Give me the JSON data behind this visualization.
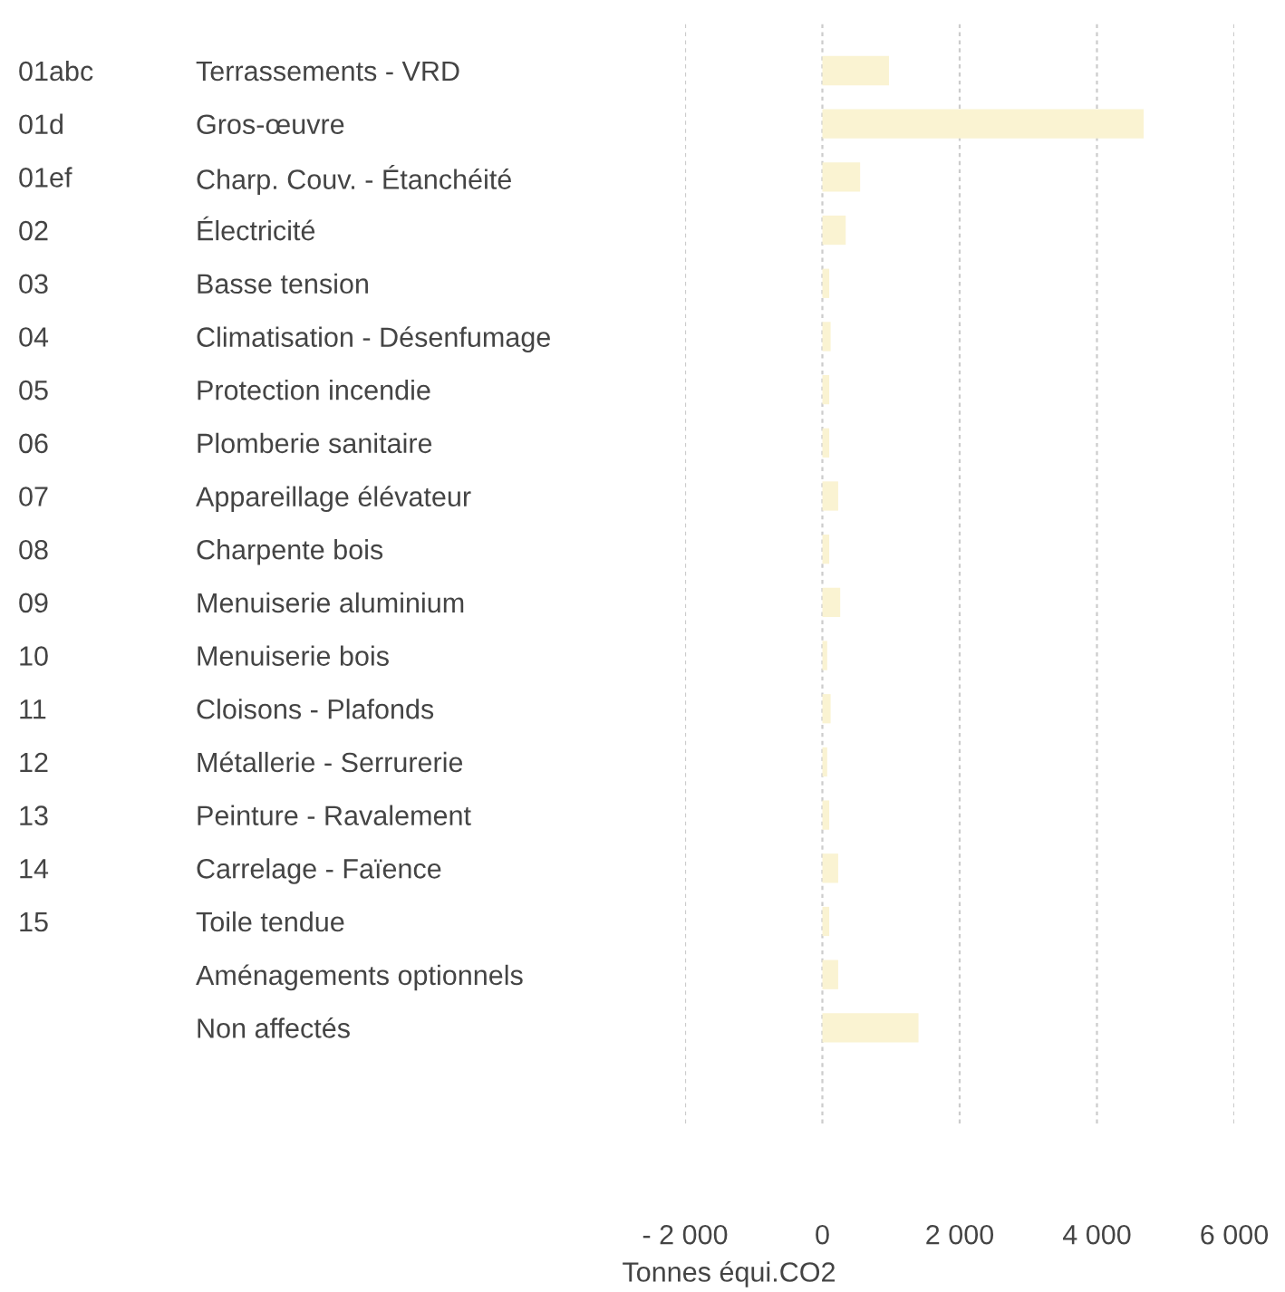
{
  "chart_data": {
    "type": "bar",
    "orientation": "horizontal",
    "xlabel": "Tonnes équi.CO2",
    "categories": [
      "Terrassements - VRD",
      "Gros-œuvre",
      "Charp. Couv. - Étanchéité",
      "Électricité",
      "Basse tension",
      "Climatisation - Désenfumage",
      "Protection incendie",
      "Plomberie sanitaire",
      "Appareillage élévateur",
      "Charpente bois",
      "Menuiserie aluminium",
      "Menuiserie bois",
      "Cloisons - Plafonds",
      "Métallerie - Serrurerie",
      "Peinture - Ravalement",
      "Carrelage - Faïence",
      "Toile tendue",
      "Aménagements optionnels",
      "Non affectés"
    ],
    "values": [
      970,
      4680,
      550,
      340,
      100,
      120,
      100,
      100,
      230,
      100,
      260,
      70,
      120,
      70,
      100,
      230,
      100,
      230,
      1400
    ],
    "color": "#faf3d2",
    "annotations": [
      "01abc",
      "01d",
      "01ef",
      "02",
      "03",
      "04",
      "05",
      "06",
      "07",
      "08",
      "09",
      "10",
      "11",
      "12",
      "13",
      "14",
      "15"
    ],
    "xlim": [
      -2000,
      6000
    ],
    "xticks": [
      {
        "value": -2000,
        "label": "- 2 000"
      },
      0,
      {
        "value": 2000,
        "label": "2 000"
      },
      {
        "value": 4000,
        "label": "4 000"
      },
      {
        "value": 6000,
        "label": "6 000"
      }
    ],
    "grid": "x",
    "legend": false
  }
}
